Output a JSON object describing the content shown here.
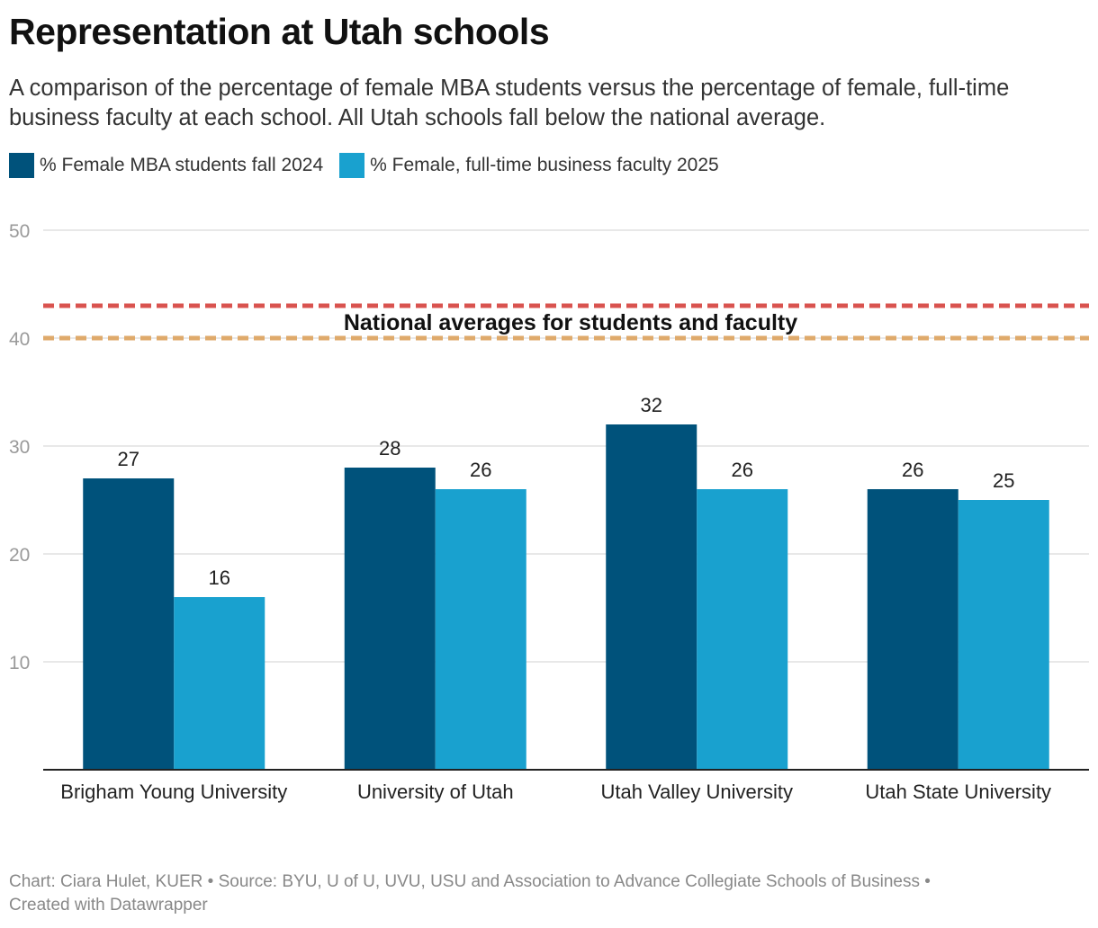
{
  "title": "Representation at Utah schools",
  "subtitle": "A comparison of the percentage of female MBA students versus the percentage of female, full-time business faculty at each school. All Utah schools fall below the national average.",
  "colors": {
    "students": "#00527b",
    "faculty": "#19a1cf",
    "national_students": "#d9534f",
    "national_faculty": "#dfaa6b"
  },
  "chart_data": {
    "type": "bar",
    "categories": [
      "Brigham Young University",
      "University of Utah",
      "Utah Valley University",
      "Utah State University"
    ],
    "series": [
      {
        "name": "% Female MBA students fall 2024",
        "values": [
          27,
          28,
          32,
          26
        ]
      },
      {
        "name": "% Female, full-time business faculty 2025",
        "values": [
          16,
          26,
          26,
          25
        ]
      }
    ],
    "ylim": [
      0,
      50
    ],
    "yticks": [
      10,
      20,
      30,
      40,
      50
    ],
    "reference_lines": [
      {
        "label": "National averages for students and faculty",
        "students_value": 43,
        "faculty_value": 40
      }
    ],
    "legend": "top-left",
    "grid": true
  },
  "footer": {
    "line1": "Chart: Ciara Hulet, KUER • Source: BYU, U of U, UVU, USU and Association to Advance Collegiate Schools of Business •",
    "line2": "Created with Datawrapper"
  }
}
